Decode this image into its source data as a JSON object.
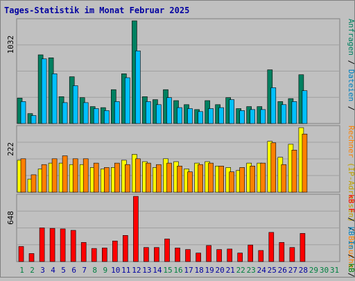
{
  "title": "Tages-Statistik im Monat Februar 2025",
  "colors": {
    "frame_bg": "#c0c0c0",
    "border_dark": "#808080",
    "border_light": "#ffffff",
    "title": "#0000a0",
    "grid": "#808080",
    "day_weekday": "#0000a0",
    "day_weekend": "#008040",
    "day_outside_month": "#008040"
  },
  "chart_data": [
    {
      "type": "bar",
      "title": "",
      "ylabel_ticks": [
        "1032"
      ],
      "ylim": [
        0,
        1032
      ],
      "x": [
        1,
        2,
        3,
        4,
        5,
        6,
        7,
        8,
        9,
        10,
        11,
        12,
        13,
        14,
        15,
        16,
        17,
        18,
        19,
        20,
        21,
        22,
        23,
        24,
        25,
        26,
        27,
        28
      ],
      "series": [
        {
          "name": "Anfragen",
          "color": "#008060",
          "values": [
            255,
            100,
            690,
            660,
            270,
            470,
            260,
            170,
            160,
            340,
            500,
            1032,
            270,
            240,
            340,
            230,
            190,
            140,
            230,
            190,
            260,
            150,
            170,
            170,
            540,
            220,
            250,
            490
          ]
        },
        {
          "name": "Dateien",
          "color": "#00c0ff",
          "values": [
            220,
            80,
            650,
            500,
            210,
            380,
            210,
            150,
            130,
            220,
            460,
            730,
            220,
            190,
            260,
            160,
            150,
            120,
            150,
            160,
            240,
            130,
            140,
            140,
            360,
            190,
            220,
            330
          ]
        }
      ],
      "legend": [
        "Anfragen",
        "/",
        "Dateien",
        "/"
      ]
    },
    {
      "type": "bar",
      "ylabel_ticks": [
        "222"
      ],
      "ylim": [
        0,
        222
      ],
      "x": [
        1,
        2,
        3,
        4,
        5,
        6,
        7,
        8,
        9,
        10,
        11,
        12,
        13,
        14,
        15,
        16,
        17,
        18,
        19,
        20,
        21,
        22,
        23,
        24,
        25,
        26,
        27,
        28
      ],
      "series": [
        {
          "name": "Rechner (IP-Adressen)",
          "color": "#ffff00",
          "values": [
            110,
            45,
            80,
            100,
            100,
            95,
            95,
            85,
            80,
            85,
            110,
            130,
            105,
            85,
            115,
            105,
            80,
            100,
            105,
            90,
            85,
            75,
            100,
            100,
            175,
            120,
            165,
            222
          ]
        },
        {
          "name": "Besuche",
          "color": "#ff8000",
          "values": [
            115,
            60,
            95,
            115,
            125,
            115,
            115,
            100,
            85,
            100,
            95,
            115,
            100,
            95,
            100,
            90,
            70,
            95,
            100,
            90,
            70,
            85,
            90,
            100,
            170,
            95,
            145,
            200
          ]
        }
      ],
      "legend": [
        "Rechner",
        "(IP-Adressen)",
        "/",
        "Besuche",
        "/"
      ]
    },
    {
      "type": "bar",
      "ylabel_ticks": [
        "648"
      ],
      "ylim": [
        0,
        648
      ],
      "x": [
        1,
        2,
        3,
        4,
        5,
        6,
        7,
        8,
        9,
        10,
        11,
        12,
        13,
        14,
        15,
        16,
        17,
        18,
        19,
        20,
        21,
        22,
        23,
        24,
        25,
        26,
        27,
        28
      ],
      "series": [
        {
          "name": "kB F",
          "color": "#ff0000",
          "values": [
            150,
            80,
            335,
            330,
            325,
            310,
            190,
            130,
            135,
            205,
            260,
            648,
            140,
            140,
            225,
            135,
            120,
            85,
            160,
            120,
            125,
            85,
            165,
            110,
            290,
            190,
            140,
            280
          ]
        }
      ],
      "legend": [
        "kB F",
        "/",
        "kB In",
        "/",
        "kB Out"
      ]
    }
  ],
  "legend_colors": {
    "Anfragen": "#008060",
    "Dateien": "#0080c0",
    "Rechner": "#ff8000",
    "(IP-Adressen)": "#c0a000",
    "Besuche": "#ff8000",
    "kB F": "#ff0000",
    "kB In": "#0080c0",
    "kB Out": "#008000",
    "sep": "#000000"
  },
  "days": {
    "labels": [
      "1",
      "2",
      "3",
      "4",
      "5",
      "6",
      "7",
      "8",
      "9",
      "10",
      "11",
      "12",
      "13",
      "14",
      "15",
      "16",
      "17",
      "18",
      "19",
      "20",
      "21",
      "22",
      "23",
      "24",
      "25",
      "26",
      "27",
      "28",
      "29",
      "30",
      "31"
    ],
    "weekend": [
      1,
      2,
      8,
      9,
      15,
      16,
      22,
      23,
      29,
      30
    ]
  }
}
